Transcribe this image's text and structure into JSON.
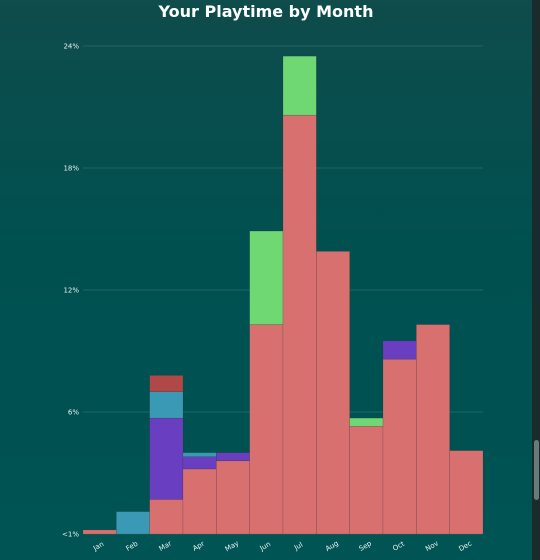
{
  "chart_data": {
    "type": "bar",
    "stacked": true,
    "title": "Your Playtime by Month",
    "categories": [
      "Jan",
      "Feb",
      "Mar",
      "Apr",
      "May",
      "Jun",
      "Jul",
      "Aug",
      "Sep",
      "Oct",
      "Nov",
      "Dec"
    ],
    "y_ticks": [
      "<1%",
      "6%",
      "12%",
      "18%",
      "24%"
    ],
    "y_tick_values": [
      0,
      6,
      12,
      18,
      24
    ],
    "ylim": [
      0,
      24
    ],
    "grid": true,
    "series": [
      {
        "color": "#d87070",
        "values": [
          0.2,
          0.0,
          1.7,
          3.2,
          3.6,
          10.3,
          20.6,
          13.9,
          5.3,
          8.6,
          10.3,
          4.1
        ]
      },
      {
        "color": "#6a3ec0",
        "values": [
          0.0,
          0.0,
          4.0,
          0.6,
          0.4,
          0.0,
          0.0,
          0.0,
          0.0,
          0.9,
          0.0,
          0.0
        ]
      },
      {
        "color": "#3a9ab5",
        "values": [
          0.0,
          1.1,
          1.3,
          0.2,
          0.0,
          0.0,
          0.0,
          0.0,
          0.0,
          0.0,
          0.0,
          0.0
        ]
      },
      {
        "color": "#b04848",
        "values": [
          0.0,
          0.0,
          0.8,
          0.0,
          0.0,
          0.0,
          0.0,
          0.0,
          0.0,
          0.0,
          0.0,
          0.0
        ]
      },
      {
        "color": "#6fd873",
        "values": [
          0.0,
          0.0,
          0.0,
          0.0,
          0.0,
          4.6,
          2.9,
          0.0,
          0.4,
          0.0,
          0.0,
          0.0
        ]
      }
    ]
  }
}
